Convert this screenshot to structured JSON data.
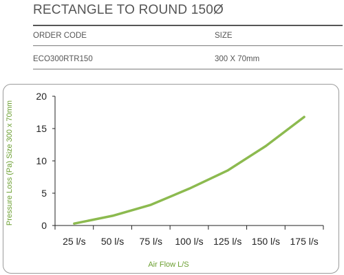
{
  "header": {
    "title": "RECTANGLE TO ROUND 150Ø",
    "columns": [
      "ORDER CODE",
      "SIZE"
    ],
    "row": [
      "ECO300RTR150",
      "300 X 70mm"
    ]
  },
  "colors": {
    "series": "#8cba4f",
    "axis_title": "#6a9e2f",
    "axis": "#222222"
  },
  "chart_data": {
    "type": "line",
    "xlabel": "Air Flow L/S",
    "ylabel": "Pressure Loss (Pa) Size 300 x 70mm",
    "categories": [
      "25 l/s",
      "50 l/s",
      "75 l/s",
      "100 l/s",
      "125 l/s",
      "150 l/s",
      "175 l/s"
    ],
    "yticks": [
      "0",
      "5",
      "10",
      "15",
      "20"
    ],
    "ylim": [
      0,
      20
    ],
    "grid": false,
    "series": [
      {
        "values": [
          0.3,
          1.5,
          3.2,
          5.7,
          8.5,
          12.3,
          16.8
        ]
      }
    ]
  }
}
